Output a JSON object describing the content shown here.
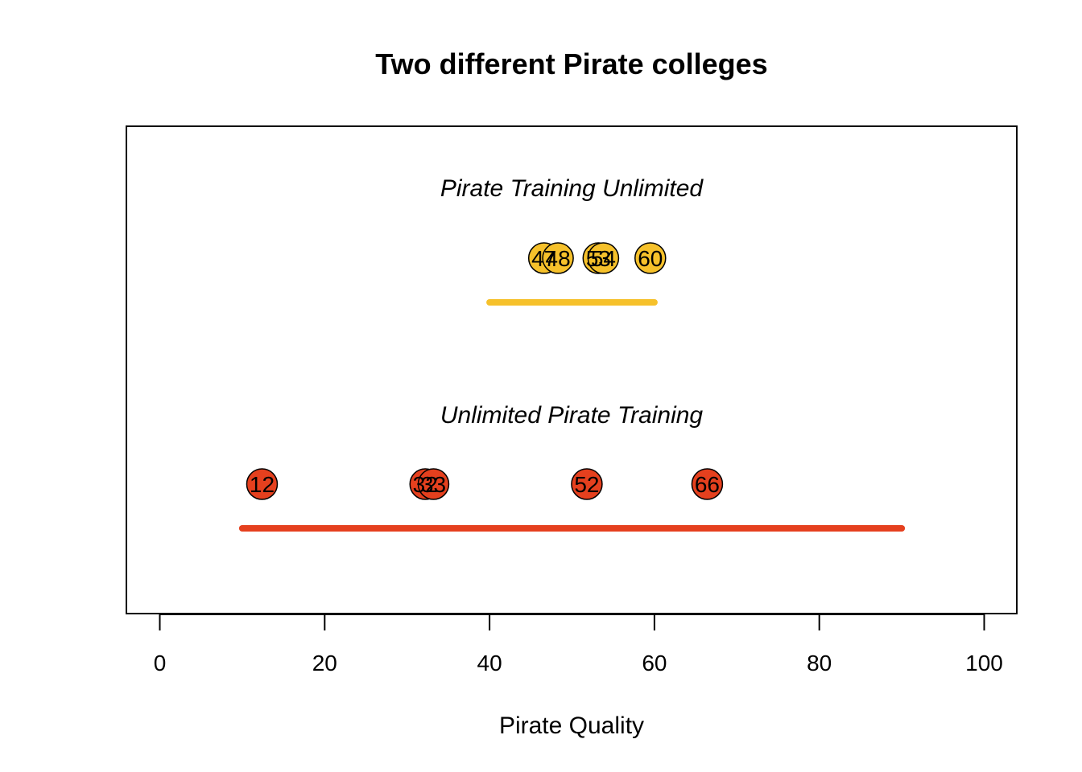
{
  "chart_data": {
    "type": "scatter",
    "title": "Two different Pirate colleges",
    "xlabel": "Pirate Quality",
    "xlim": [
      0,
      100
    ],
    "x_ticks": [
      0,
      20,
      40,
      60,
      80,
      100
    ],
    "x_tick_labels": [
      "0",
      "20",
      "40",
      "60",
      "80",
      "100"
    ],
    "grid": false,
    "groups": [
      {
        "name": "Pirate Training Unlimited",
        "color": "#F6C12B",
        "points": [
          {
            "x": 46.6,
            "label": "47"
          },
          {
            "x": 48.3,
            "label": "48"
          },
          {
            "x": 53.2,
            "label": "53"
          },
          {
            "x": 53.8,
            "label": "54"
          },
          {
            "x": 59.5,
            "label": "60"
          }
        ],
        "range": [
          40,
          60
        ]
      },
      {
        "name": "Unlimited Pirate Training",
        "color": "#E5401E",
        "points": [
          {
            "x": 12.4,
            "label": "12"
          },
          {
            "x": 32.2,
            "label": "32"
          },
          {
            "x": 33.2,
            "label": "33"
          },
          {
            "x": 51.8,
            "label": "52"
          },
          {
            "x": 66.4,
            "label": "66"
          }
        ],
        "range": [
          10,
          90
        ]
      }
    ]
  }
}
